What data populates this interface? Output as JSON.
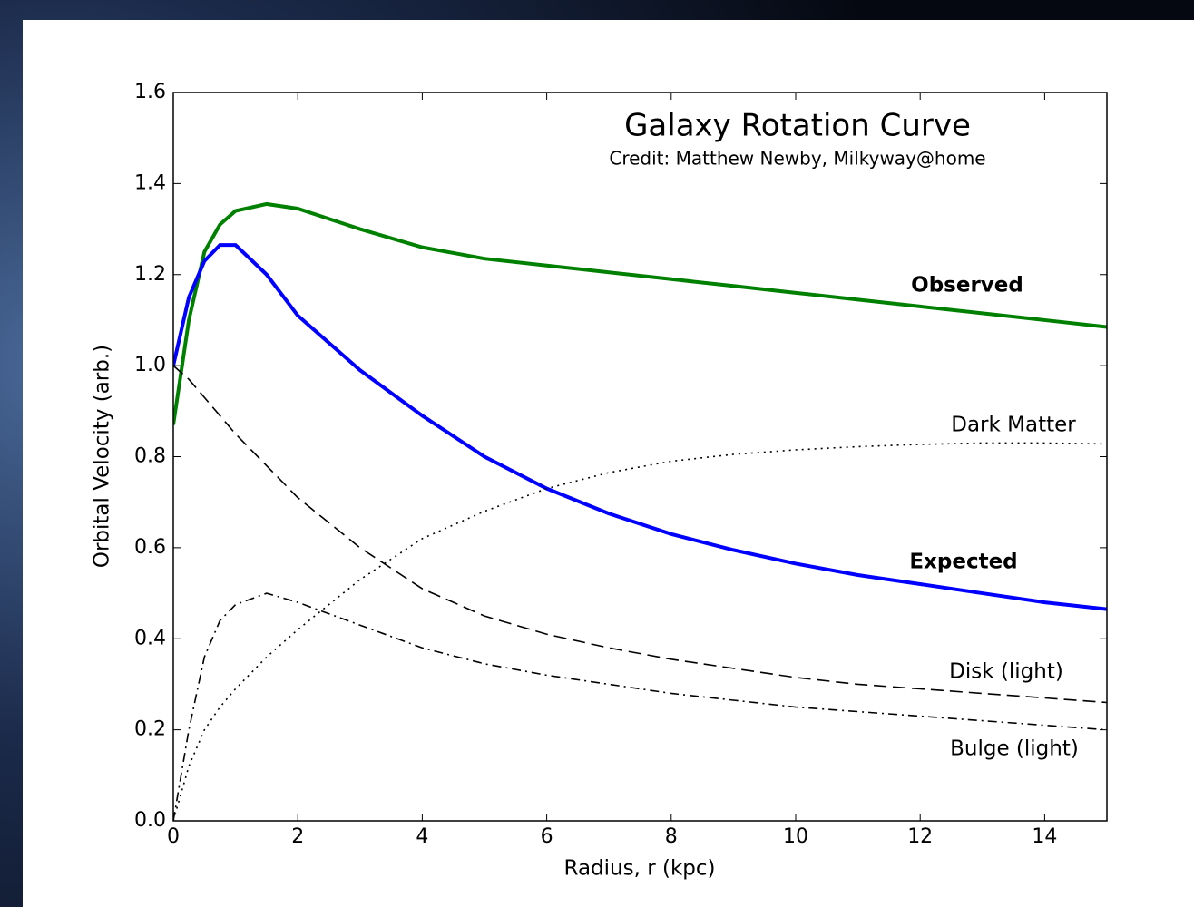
{
  "chart_data": {
    "type": "line",
    "title": "Galaxy Rotation Curve",
    "subtitle": "Credit:  Matthew Newby, Milkyway@home",
    "x_label": "Radius, r (kpc)",
    "y_label": "Orbital Velocity (arb.)",
    "x": [
      0,
      0.25,
      0.5,
      0.75,
      1,
      1.5,
      2,
      3,
      4,
      5,
      6,
      7,
      8,
      9,
      10,
      11,
      12,
      13,
      14,
      15
    ],
    "series": [
      {
        "name": "Observed",
        "color": "#008000",
        "style": "solid",
        "values": [
          0.87,
          1.1,
          1.25,
          1.31,
          1.34,
          1.355,
          1.345,
          1.3,
          1.26,
          1.235,
          1.22,
          1.205,
          1.19,
          1.175,
          1.16,
          1.145,
          1.13,
          1.115,
          1.1,
          1.085
        ]
      },
      {
        "name": "Expected",
        "color": "#0000ff",
        "style": "solid",
        "values": [
          1.0,
          1.15,
          1.23,
          1.265,
          1.265,
          1.2,
          1.11,
          0.99,
          0.89,
          0.8,
          0.73,
          0.675,
          0.63,
          0.595,
          0.565,
          0.54,
          0.52,
          0.5,
          0.48,
          0.465
        ]
      },
      {
        "name": "Dark Matter",
        "color": "#000000",
        "style": "dotted",
        "values": [
          0,
          0.12,
          0.2,
          0.25,
          0.29,
          0.36,
          0.42,
          0.53,
          0.62,
          0.68,
          0.73,
          0.765,
          0.79,
          0.805,
          0.815,
          0.822,
          0.827,
          0.83,
          0.83,
          0.828
        ]
      },
      {
        "name": "Disk (light)",
        "color": "#000000",
        "style": "dashed",
        "values": [
          1.0,
          0.97,
          0.93,
          0.89,
          0.85,
          0.78,
          0.71,
          0.6,
          0.51,
          0.45,
          0.41,
          0.38,
          0.355,
          0.335,
          0.315,
          0.3,
          0.29,
          0.28,
          0.27,
          0.26
        ]
      },
      {
        "name": "Bulge (light)",
        "color": "#000000",
        "style": "dashdot",
        "values": [
          0,
          0.2,
          0.36,
          0.44,
          0.475,
          0.5,
          0.48,
          0.43,
          0.38,
          0.345,
          0.32,
          0.3,
          0.28,
          0.265,
          0.25,
          0.24,
          0.23,
          0.22,
          0.21,
          0.2
        ]
      }
    ],
    "xlim": [
      0,
      15
    ],
    "xticks": [
      0,
      2,
      4,
      6,
      8,
      10,
      12,
      14
    ],
    "ylim": [
      0,
      1.6
    ],
    "yticks": [
      {
        "value": 0,
        "label": "0.0"
      },
      0.2,
      0.4,
      0.6,
      0.8,
      {
        "value": 1,
        "label": "1.0"
      },
      1.2,
      1.4,
      1.6
    ],
    "grid": false
  }
}
